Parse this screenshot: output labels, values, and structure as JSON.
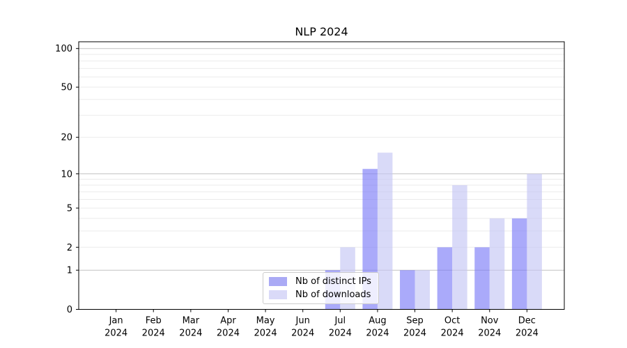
{
  "chart_data": {
    "type": "bar",
    "title": "NLP 2024",
    "categories": [
      "Jan",
      "Feb",
      "Mar",
      "Apr",
      "May",
      "Jun",
      "Jul",
      "Aug",
      "Sep",
      "Oct",
      "Nov",
      "Dec"
    ],
    "year": "2024",
    "series": [
      {
        "name": "Nb of distinct IPs",
        "color_base": "#7c7cf8",
        "color_on_white": "#aaaaf5",
        "values": [
          0,
          0,
          0,
          0,
          0,
          0,
          1,
          11,
          1,
          2,
          2,
          4
        ]
      },
      {
        "name": "Nb of downloads",
        "color_base": "#c5c6f4",
        "color_on_white": "#dadaf8",
        "values": [
          0,
          0,
          0,
          0,
          0,
          0,
          2,
          15,
          1,
          8,
          4,
          10
        ]
      }
    ],
    "yscale": "log1p",
    "ylim": [
      0,
      113
    ],
    "ytick_labels": [
      0,
      1,
      2,
      5,
      10,
      20,
      50,
      100
    ],
    "y_major_gridlines": [
      1,
      10,
      100
    ],
    "y_minor_gridlines": [
      2,
      3,
      4,
      5,
      6,
      7,
      8,
      9,
      20,
      30,
      40,
      50,
      60,
      70,
      80,
      90
    ],
    "grid": "horizontal",
    "legend_position": "lower-center",
    "colors": {
      "major_grid": "#c2c2c2",
      "minor_grid": "#ebebeb",
      "axis": "#000000",
      "bar_opacity": 0.65
    }
  }
}
